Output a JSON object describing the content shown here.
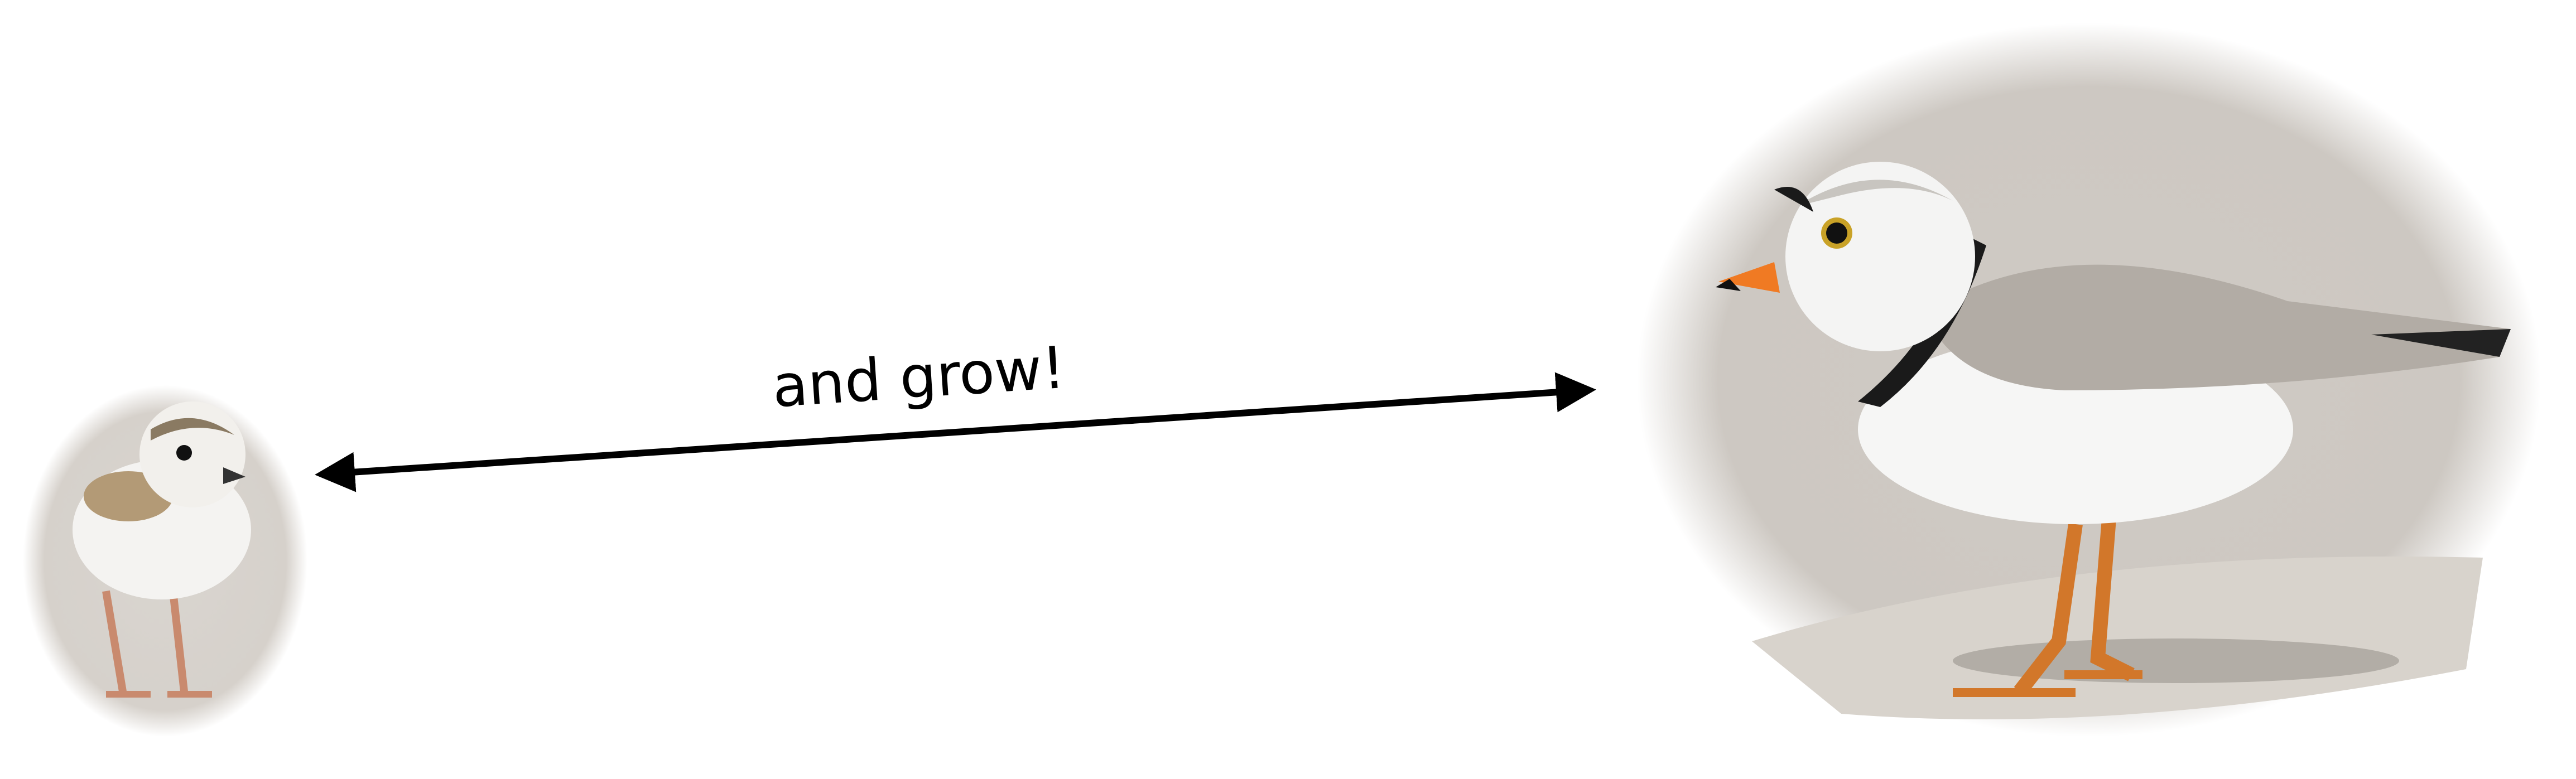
{
  "label": "and grow!"
}
